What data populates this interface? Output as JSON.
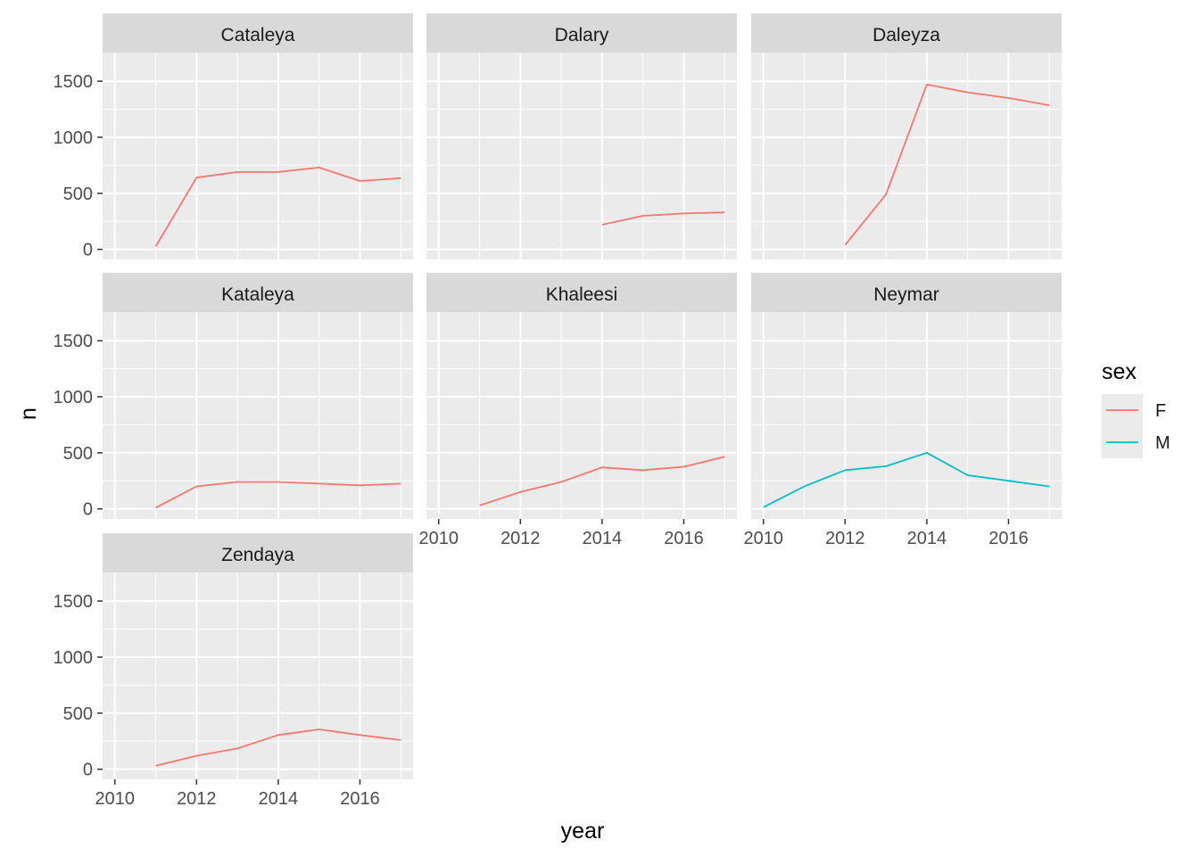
{
  "chart_data": {
    "type": "line",
    "facet_by": "name",
    "xlabel": "year",
    "ylabel": "n",
    "xlim": [
      2009.7,
      2017.3
    ],
    "ylim": [
      -90,
      1755
    ],
    "x_ticks": [
      2010,
      2012,
      2014,
      2016
    ],
    "y_ticks": [
      0,
      500,
      1000,
      1500
    ],
    "grid": true,
    "legend": {
      "title": "sex",
      "position": "right",
      "entries": [
        {
          "label": "F",
          "color": "#F8766D"
        },
        {
          "label": "M",
          "color": "#00BFC4"
        }
      ]
    },
    "panels": [
      {
        "title": "Cataleya",
        "series": [
          {
            "name": "F",
            "x": [
              2011,
              2012,
              2013,
              2014,
              2015,
              2016,
              2017
            ],
            "values": [
              25,
              640,
              690,
              690,
              730,
              610,
              635
            ]
          }
        ]
      },
      {
        "title": "Dalary",
        "series": [
          {
            "name": "F",
            "x": [
              2014,
              2015,
              2016,
              2017
            ],
            "values": [
              220,
              300,
              320,
              330
            ]
          }
        ]
      },
      {
        "title": "Daleyza",
        "series": [
          {
            "name": "F",
            "x": [
              2012,
              2013,
              2014,
              2015,
              2016,
              2017
            ],
            "values": [
              40,
              490,
              1470,
              1400,
              1350,
              1285
            ]
          }
        ]
      },
      {
        "title": "Kataleya",
        "series": [
          {
            "name": "F",
            "x": [
              2011,
              2012,
              2013,
              2014,
              2015,
              2016,
              2017
            ],
            "values": [
              10,
              200,
              240,
              240,
              225,
              210,
              225
            ]
          }
        ]
      },
      {
        "title": "Khaleesi",
        "series": [
          {
            "name": "F",
            "x": [
              2011,
              2012,
              2013,
              2014,
              2015,
              2016,
              2017
            ],
            "values": [
              30,
              150,
              240,
              370,
              345,
              375,
              465
            ]
          }
        ]
      },
      {
        "title": "Neymar",
        "series": [
          {
            "name": "M",
            "x": [
              2010,
              2011,
              2012,
              2013,
              2014,
              2015,
              2016,
              2017
            ],
            "values": [
              15,
              200,
              345,
              380,
              500,
              300,
              250,
              200
            ]
          }
        ]
      },
      {
        "title": "Zendaya",
        "series": [
          {
            "name": "F",
            "x": [
              2011,
              2012,
              2013,
              2014,
              2015,
              2016,
              2017
            ],
            "values": [
              30,
              120,
              185,
              305,
              355,
              305,
              260
            ]
          }
        ]
      }
    ]
  }
}
